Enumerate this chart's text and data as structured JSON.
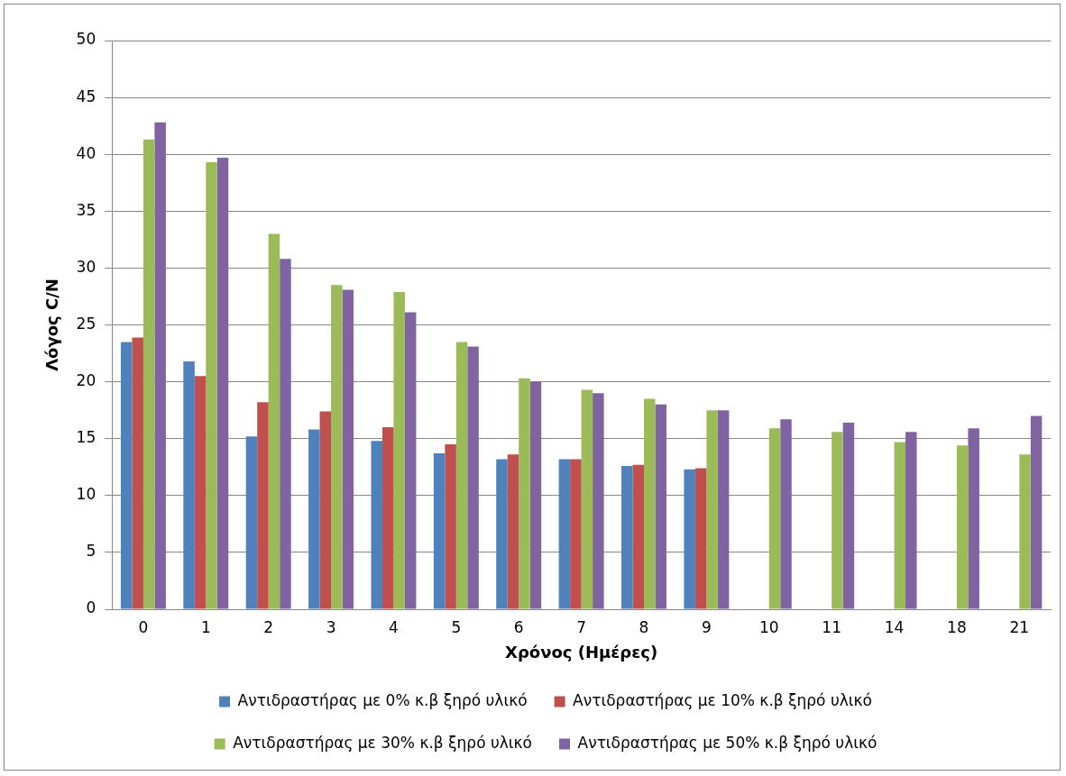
{
  "chart_data": {
    "type": "bar",
    "xlabel": "Χρόνος (Ημέρες)",
    "ylabel": "Λόγος C/N",
    "categories": [
      "0",
      "1",
      "2",
      "3",
      "4",
      "5",
      "6",
      "7",
      "8",
      "9",
      "10",
      "11",
      "14",
      "18",
      "21"
    ],
    "series": [
      {
        "name": "Αντιδραστήρας με 0% κ.β ξηρό υλικό",
        "color": "#4f81bd",
        "values": [
          23.5,
          21.8,
          15.2,
          15.8,
          14.8,
          13.7,
          13.2,
          13.2,
          12.6,
          12.3,
          null,
          null,
          null,
          null,
          null
        ]
      },
      {
        "name": "Αντιδραστήρας με 10% κ.β ξηρό υλικό",
        "color": "#c0504d",
        "values": [
          23.9,
          20.5,
          18.2,
          17.4,
          16.0,
          14.5,
          13.6,
          13.2,
          12.7,
          12.4,
          null,
          null,
          null,
          null,
          null
        ]
      },
      {
        "name": "Αντιδραστήρας με 30% κ.β ξηρό υλικό",
        "color": "#9bbb59",
        "values": [
          41.3,
          39.3,
          33.0,
          28.5,
          27.9,
          23.5,
          20.3,
          19.3,
          18.5,
          17.5,
          15.9,
          15.6,
          14.7,
          14.4,
          13.6
        ]
      },
      {
        "name": "Αντιδραστήρας με 50% κ.β ξηρό υλικό",
        "color": "#8064a2",
        "values": [
          42.8,
          39.7,
          30.8,
          28.1,
          26.1,
          23.1,
          20.0,
          19.0,
          18.0,
          17.5,
          16.7,
          16.4,
          15.6,
          15.9,
          17.0
        ]
      }
    ],
    "ylim": [
      0,
      50
    ],
    "yticks": [
      0,
      5,
      10,
      15,
      20,
      25,
      30,
      35,
      40,
      45,
      50
    ],
    "grid": "y",
    "legend": "bottom"
  }
}
